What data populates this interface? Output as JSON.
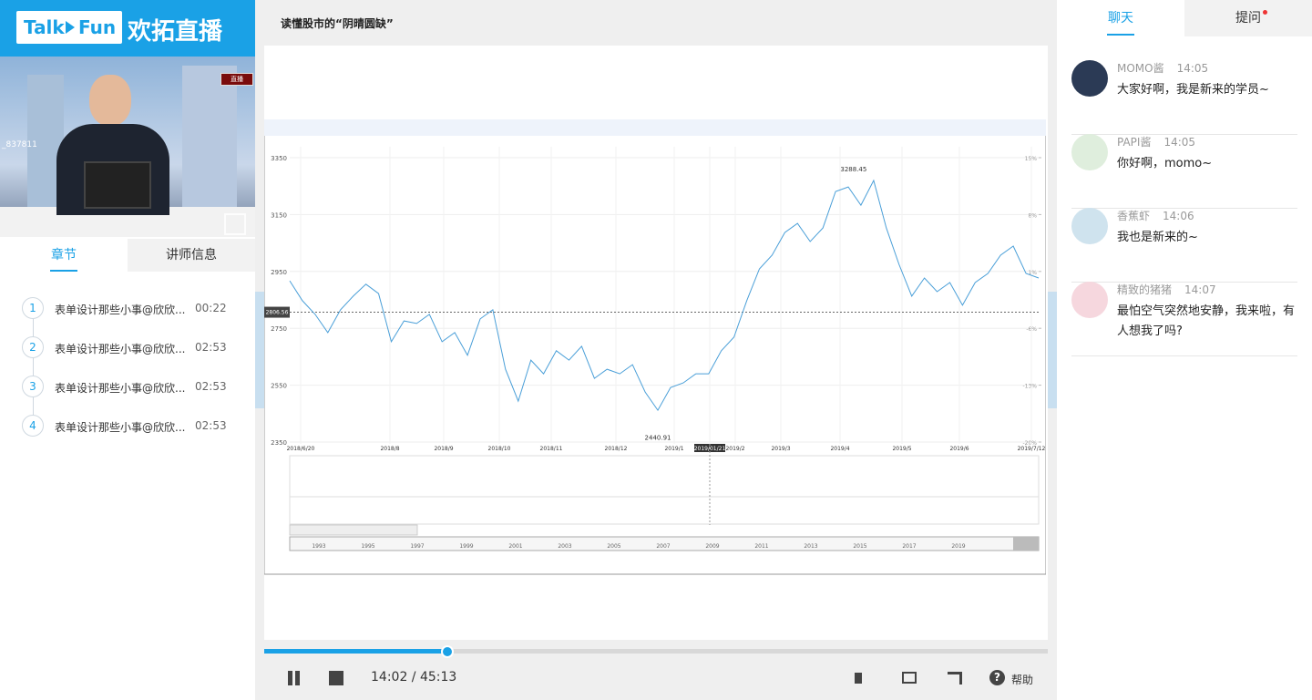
{
  "header": {
    "logo_left": "Talk",
    "logo_right": "Fun",
    "brand": "欢拓直播"
  },
  "video": {
    "badge": "直播",
    "room_id": "_837811"
  },
  "left_tabs": [
    "章节",
    "讲师信息"
  ],
  "chapters": [
    {
      "index": "1",
      "title": "表单设计那些小事@欣欣...",
      "time": "00:22"
    },
    {
      "index": "2",
      "title": "表单设计那些小事@欣欣...",
      "time": "02:53"
    },
    {
      "index": "3",
      "title": "表单设计那些小事@欣欣...",
      "time": "02:53"
    },
    {
      "index": "4",
      "title": "表单设计那些小事@欣欣...",
      "time": "02:53"
    }
  ],
  "lesson_title": "读懂股市的“阴晴圆缺”",
  "slide_chart": {
    "type": "line",
    "color": "#4a9fd8",
    "values": [
      2917,
      2847,
      2799,
      2735,
      2815,
      2863,
      2905,
      2872,
      2703,
      2776,
      2767,
      2799,
      2703,
      2735,
      2655,
      2783,
      2815,
      2606,
      2494,
      2638,
      2590,
      2671,
      2638,
      2687,
      2574,
      2606,
      2590,
      2622,
      2526,
      2462,
      2542,
      2558,
      2590,
      2590,
      2671,
      2719,
      2847,
      2959,
      3007,
      3087,
      3119,
      3055,
      3103,
      3231,
      3247,
      3183,
      3270,
      3103,
      2975,
      2863,
      2927,
      2879,
      2911,
      2831,
      2911,
      2943,
      3007,
      3039,
      2943,
      2927
    ],
    "ylim": [
      2350,
      3350
    ],
    "yticks": [
      2350,
      2550,
      2750,
      2950,
      3150,
      3350
    ],
    "y2lim": [
      -20,
      15
    ],
    "y2ticks": [
      {
        "value": -20,
        "label": "-20%"
      },
      {
        "value": -13,
        "label": "-13%"
      },
      {
        "value": -6,
        "label": "-6%"
      },
      {
        "value": 1,
        "label": "1%"
      },
      {
        "value": 8,
        "label": "8%"
      },
      {
        "value": 15,
        "label": "15%"
      }
    ],
    "x_labels": [
      "2018/6/20",
      "2018/8",
      "2018/9",
      "2018/10",
      "2018/11",
      "2018/12",
      "2019/1",
      "2019/01/21",
      "2019/2",
      "2019/3",
      "2019/4",
      "2019/5",
      "2019/6",
      "2019/7/12"
    ],
    "reference": 2806.56,
    "high": 3288.45,
    "low": 2440.91,
    "timeline": [
      "1993",
      "1995",
      "1997",
      "1999",
      "2001",
      "2003",
      "2005",
      "2007",
      "2009",
      "2011",
      "2013",
      "2015",
      "2017",
      "2019"
    ],
    "grid": true
  },
  "player": {
    "time": "14:02 / 45:13",
    "help": "帮助"
  },
  "chat_tabs": [
    "聊天",
    "提问"
  ],
  "messages": [
    {
      "name": "MOMO酱",
      "time": "14:05",
      "text": "大家好啊，我是新来的学员~"
    },
    {
      "name": "PAPI酱",
      "time": "14:05",
      "text": "你好啊，momo~"
    },
    {
      "name": "香蕉虾",
      "time": "14:06",
      "text": "我也是新来的~"
    },
    {
      "name": "精致的猪猪",
      "time": "14:07",
      "text": "最怕空气突然地安静，我来啦，有人想我了吗?"
    }
  ]
}
